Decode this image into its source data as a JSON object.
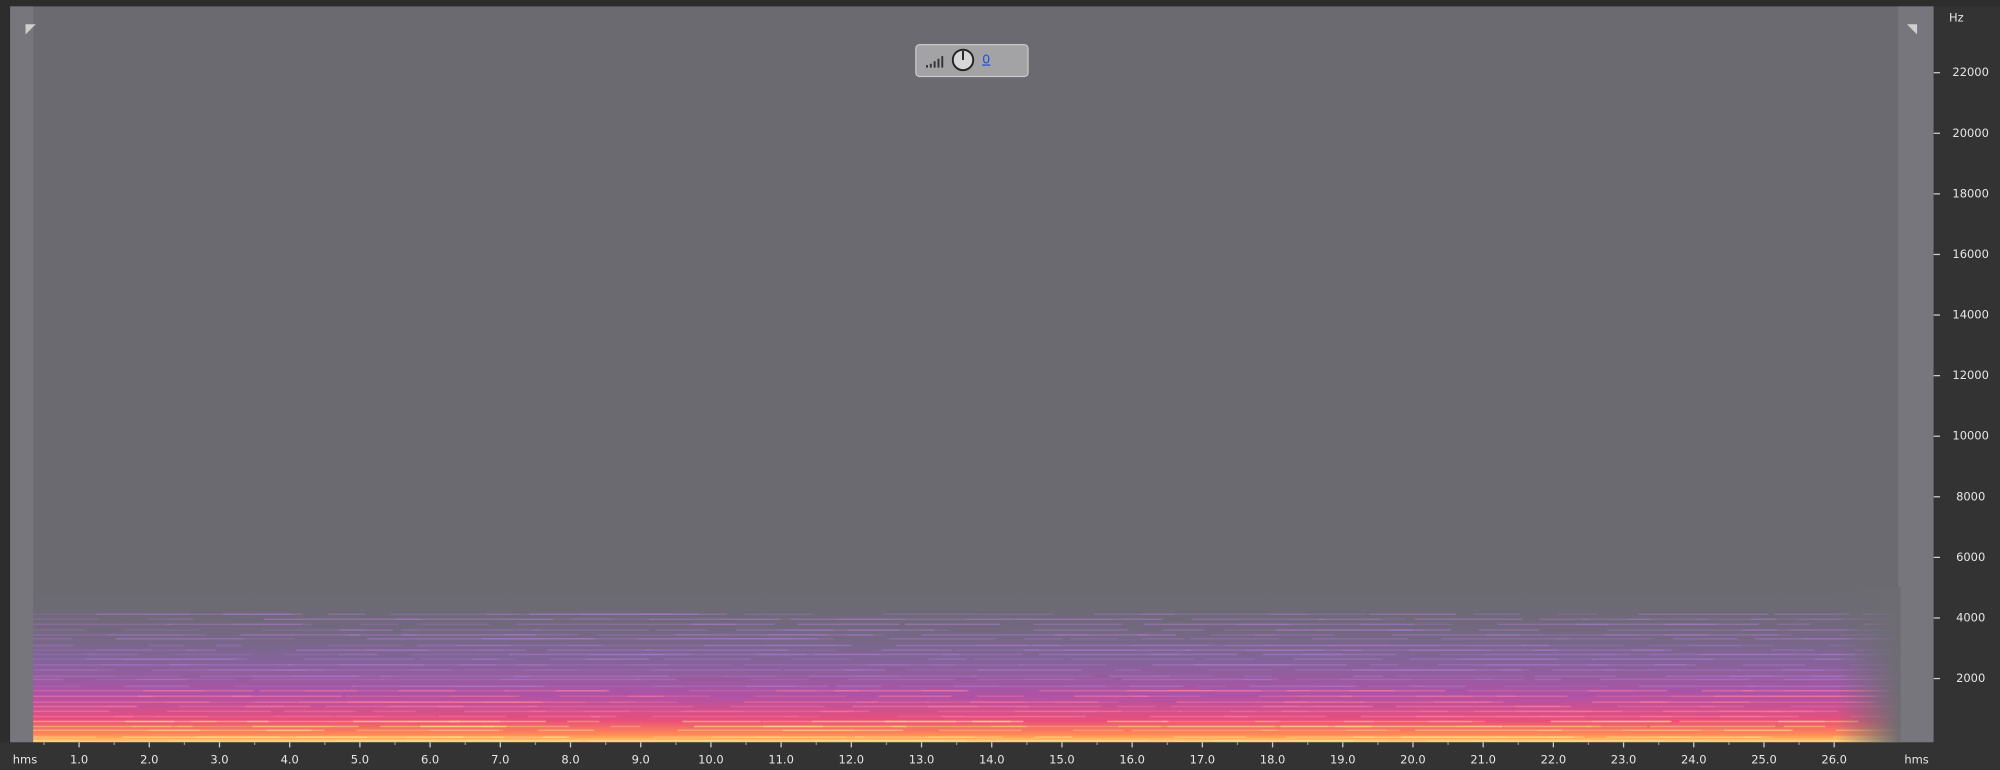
{
  "frequency_axis": {
    "unit": "Hz",
    "ticks": [
      2000,
      4000,
      6000,
      8000,
      10000,
      12000,
      14000,
      16000,
      18000,
      20000,
      22000
    ]
  },
  "time_axis": {
    "unit_left": "hms",
    "unit_right": "hms",
    "ticks": [
      "1.0",
      "2.0",
      "3.0",
      "4.0",
      "5.0",
      "6.0",
      "7.0",
      "8.0",
      "9.0",
      "10.0",
      "11.0",
      "12.0",
      "13.0",
      "14.0",
      "15.0",
      "16.0",
      "17.0",
      "18.0",
      "19.0",
      "20.0",
      "21.0",
      "22.0",
      "23.0",
      "24.0",
      "25.0",
      "26.0"
    ]
  },
  "gain_control": {
    "value": "0"
  }
}
